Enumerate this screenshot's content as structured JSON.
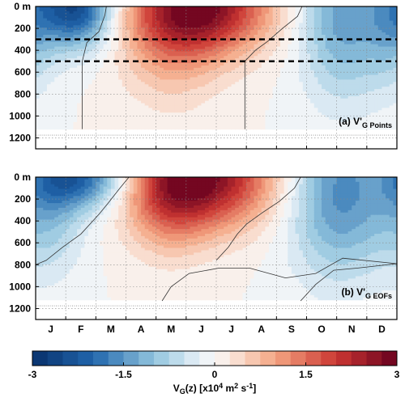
{
  "chart_data": [
    {
      "type": "heatmap",
      "panel": "a",
      "label_main": "(a) V'",
      "label_sub": "G Points",
      "x_tick_labels": [
        "J",
        "F",
        "M",
        "A",
        "M",
        "J",
        "J",
        "A",
        "S",
        "O",
        "N",
        "D"
      ],
      "y_tick_labels": [
        "0 m",
        "200",
        "400",
        "600",
        "800",
        "1000",
        "1200"
      ],
      "y_ticks": [
        0,
        200,
        400,
        600,
        800,
        1000,
        1200
      ],
      "ylim": [
        0,
        1300
      ],
      "xlim": [
        0.5,
        12.5
      ],
      "horizontal_dashed_lines_depth": [
        300,
        500
      ],
      "field_lobes": [
        {
          "month": 1.8,
          "depth_center": 0,
          "amp": -2.6,
          "sx": 0.9,
          "sz": 260
        },
        {
          "month": 6.0,
          "depth_center": 0,
          "amp": 2.7,
          "sx": 1.6,
          "sz": 300
        },
        {
          "month": 5.0,
          "depth_center": 350,
          "amp": 0.8,
          "sx": 1.2,
          "sz": 400
        },
        {
          "month": 10.7,
          "depth_center": 80,
          "amp": -1.4,
          "sx": 1.0,
          "sz": 520
        },
        {
          "month": 12.3,
          "depth_center": 150,
          "amp": -0.8,
          "sx": 0.6,
          "sz": 400
        }
      ],
      "zero_contours": [
        [
          [
            2.85,
            0
          ],
          [
            2.8,
            80
          ],
          [
            2.6,
            230
          ],
          [
            2.2,
            330
          ],
          [
            2.05,
            500
          ],
          [
            2.05,
            1120
          ]
        ],
        [
          [
            9.35,
            0
          ],
          [
            9.2,
            90
          ],
          [
            8.7,
            200
          ],
          [
            8.2,
            320
          ],
          [
            7.8,
            400
          ],
          [
            7.45,
            500
          ],
          [
            7.45,
            1120
          ]
        ]
      ]
    },
    {
      "type": "heatmap",
      "panel": "b",
      "label_main": "(b) V'",
      "label_sub": "G EOFs",
      "x_tick_labels": [
        "J",
        "F",
        "M",
        "A",
        "M",
        "J",
        "J",
        "A",
        "S",
        "O",
        "N",
        "D"
      ],
      "y_tick_labels": [
        "0 m",
        "200",
        "400",
        "600",
        "800",
        "1000",
        "1200"
      ],
      "y_ticks": [
        0,
        200,
        400,
        600,
        800,
        1000,
        1200
      ],
      "ylim": [
        0,
        1300
      ],
      "xlim": [
        0.5,
        12.5
      ],
      "field_lobes": [
        {
          "month": 2.0,
          "depth_center": 0,
          "amp": -1.9,
          "sx": 1.1,
          "sz": 200
        },
        {
          "month": 6.2,
          "depth_center": 0,
          "amp": 2.6,
          "sx": 1.6,
          "sz": 320
        },
        {
          "month": 4.9,
          "depth_center": 200,
          "amp": 1.1,
          "sx": 1.0,
          "sz": 350
        },
        {
          "month": 10.6,
          "depth_center": 150,
          "amp": -1.6,
          "sx": 1.2,
          "sz": 520
        },
        {
          "month": 1.0,
          "depth_center": 250,
          "amp": -0.9,
          "sx": 0.8,
          "sz": 420
        }
      ],
      "zero_contours": [
        [
          [
            0.5,
            800
          ],
          [
            0.85,
            760
          ],
          [
            1.4,
            640
          ],
          [
            2.0,
            520
          ],
          [
            2.6,
            340
          ],
          [
            2.9,
            240
          ],
          [
            3.3,
            100
          ],
          [
            3.6,
            0
          ]
        ],
        [
          [
            9.3,
            0
          ],
          [
            9.1,
            100
          ],
          [
            8.6,
            220
          ],
          [
            8.0,
            330
          ],
          [
            7.5,
            430
          ],
          [
            7.2,
            520
          ],
          [
            6.9,
            640
          ],
          [
            6.5,
            760
          ]
        ],
        [
          [
            4.7,
            1130
          ],
          [
            5.0,
            1000
          ],
          [
            5.6,
            880
          ],
          [
            6.6,
            830
          ],
          [
            7.6,
            830
          ],
          [
            8.8,
            920
          ],
          [
            9.8,
            880
          ],
          [
            10.7,
            740
          ],
          [
            12.5,
            790
          ]
        ],
        [
          [
            9.3,
            1130
          ],
          [
            9.8,
            980
          ],
          [
            10.4,
            850
          ],
          [
            11.2,
            830
          ],
          [
            12.5,
            790
          ]
        ]
      ]
    }
  ],
  "colorbar": {
    "min": -3,
    "max": 3,
    "tick_labels": [
      "-3",
      "-1.5",
      "0",
      "1.5",
      "3"
    ],
    "tick_values": [
      -3,
      -1.5,
      0,
      1.5,
      3
    ],
    "n_levels": 24,
    "label_main": "V",
    "label_sub": "G",
    "label_rest": "(z) [x10",
    "label_exp1": "4",
    "label_mid": " m",
    "label_exp2": "2",
    "label_mid2": " s",
    "label_exp3": "-1",
    "label_end": "]",
    "colors": {
      "neg_dark": "#08306b",
      "neutral": "#f7f7f7",
      "pos_dark": "#67001f"
    }
  }
}
